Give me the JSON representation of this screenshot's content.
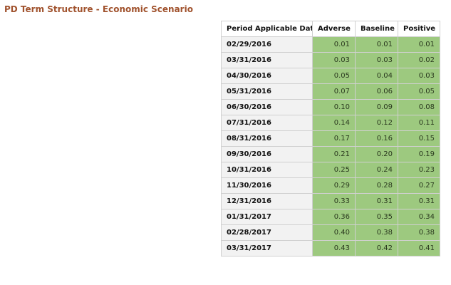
{
  "page": {
    "title": "PD Term Structure - Economic Scenario"
  },
  "colors": {
    "title": "#a0522d",
    "value_cell_bg": "#9dc97f",
    "date_cell_bg": "#f2f2f2"
  },
  "table": {
    "headers": [
      "Period Applicable Date",
      "Adverse",
      "Baseline",
      "Positive"
    ],
    "rows": [
      [
        "02/29/2016",
        "0.01",
        "0.01",
        "0.01"
      ],
      [
        "03/31/2016",
        "0.03",
        "0.03",
        "0.02"
      ],
      [
        "04/30/2016",
        "0.05",
        "0.04",
        "0.03"
      ],
      [
        "05/31/2016",
        "0.07",
        "0.06",
        "0.05"
      ],
      [
        "06/30/2016",
        "0.10",
        "0.09",
        "0.08"
      ],
      [
        "07/31/2016",
        "0.14",
        "0.12",
        "0.11"
      ],
      [
        "08/31/2016",
        "0.17",
        "0.16",
        "0.15"
      ],
      [
        "09/30/2016",
        "0.21",
        "0.20",
        "0.19"
      ],
      [
        "10/31/2016",
        "0.25",
        "0.24",
        "0.23"
      ],
      [
        "11/30/2016",
        "0.29",
        "0.28",
        "0.27"
      ],
      [
        "12/31/2016",
        "0.33",
        "0.31",
        "0.31"
      ],
      [
        "01/31/2017",
        "0.36",
        "0.35",
        "0.34"
      ],
      [
        "02/28/2017",
        "0.40",
        "0.38",
        "0.38"
      ],
      [
        "03/31/2017",
        "0.43",
        "0.42",
        "0.41"
      ]
    ]
  }
}
